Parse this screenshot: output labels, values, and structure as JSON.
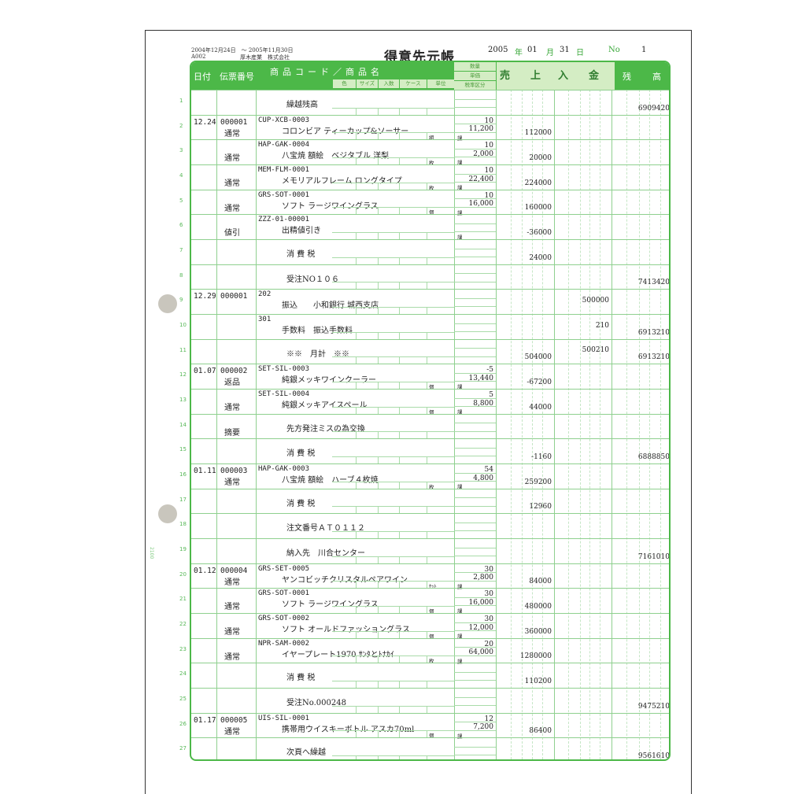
{
  "header": {
    "period": "2004年12月24日　～ 2005年11月30日",
    "customer_code": "A002",
    "customer_name": "厚木産業　株式会社",
    "title": "得意先元帳",
    "year": "2005",
    "year_label": "年",
    "month": "01",
    "month_label": "月",
    "day": "31",
    "day_label": "日",
    "no_label": "No",
    "no": "1"
  },
  "columns": {
    "date": "日付",
    "voucher": "伝票番号",
    "product": "商品コード／商品名",
    "color": "色",
    "size": "サイズ",
    "per_case": "入数",
    "case": "ケース",
    "unit": "単位",
    "quantity": "数量",
    "price": "単価",
    "tax_class": "税率区分",
    "sales": "売　　上",
    "payment": "入　　金",
    "balance": "残　高"
  },
  "side_text": "2100",
  "colors": {
    "accent": "#4cb848",
    "light": "#d4edc4",
    "line": "#8fd08f"
  },
  "rows": [
    {
      "n": "1",
      "date": "",
      "voucher": "",
      "type": "",
      "code": "",
      "name": "繰越残高",
      "unit": "",
      "qty": "",
      "price": "",
      "tax": "",
      "sales": "",
      "payment": "",
      "balance": "6909420"
    },
    {
      "n": "2",
      "date": "12.24",
      "voucher": "000001",
      "type": "通常",
      "code": "CUP-XCB-0003",
      "name": "コロンビア ティーカップ&ソーサー",
      "unit": "組",
      "qty": "10",
      "price": "11,200",
      "tax": "課",
      "sales": "112000",
      "payment": "",
      "balance": ""
    },
    {
      "n": "3",
      "date": "",
      "voucher": "",
      "type": "通常",
      "code": "HAP-GAK-0004",
      "name": "八宝焼 額絵　ベジタブル 洋梨",
      "unit": "枚",
      "qty": "10",
      "price": "2,000",
      "tax": "課",
      "sales": "20000",
      "payment": "",
      "balance": ""
    },
    {
      "n": "4",
      "date": "",
      "voucher": "",
      "type": "通常",
      "code": "MEM-FLM-0001",
      "name": "メモリアルフレーム ロングタイプ",
      "unit": "枚",
      "qty": "10",
      "price": "22,400",
      "tax": "課",
      "sales": "224000",
      "payment": "",
      "balance": ""
    },
    {
      "n": "5",
      "date": "",
      "voucher": "",
      "type": "通常",
      "code": "GRS-SOT-0001",
      "name": "ソフト ラージワイングラス",
      "unit": "個",
      "qty": "10",
      "price": "16,000",
      "tax": "課",
      "sales": "160000",
      "payment": "",
      "balance": ""
    },
    {
      "n": "6",
      "date": "",
      "voucher": "",
      "type": "値引",
      "code": "ZZZ-01-00001",
      "name": "出精値引き",
      "unit": "",
      "qty": "",
      "price": "",
      "tax": "課",
      "sales": "-36000",
      "payment": "",
      "balance": ""
    },
    {
      "n": "7",
      "date": "",
      "voucher": "",
      "type": "",
      "code": "",
      "name": "消 費 税",
      "unit": "",
      "qty": "",
      "price": "",
      "tax": "",
      "sales": "24000",
      "payment": "",
      "balance": ""
    },
    {
      "n": "8",
      "date": "",
      "voucher": "",
      "type": "",
      "code": "",
      "name": "受注NO１０６",
      "unit": "",
      "qty": "",
      "price": "",
      "tax": "",
      "sales": "",
      "payment": "",
      "balance": "7413420"
    },
    {
      "n": "9",
      "date": "12.29",
      "voucher": "000001",
      "type": "",
      "code": "202",
      "name": "振込　　小和銀行 城西支店",
      "unit": "",
      "qty": "",
      "price": "",
      "tax": "",
      "sales": "",
      "payment": "500000",
      "balance": ""
    },
    {
      "n": "10",
      "date": "",
      "voucher": "",
      "type": "",
      "code": "301",
      "name": "手数料　振込手数料",
      "unit": "",
      "qty": "",
      "price": "",
      "tax": "",
      "sales": "",
      "payment": "210",
      "balance": "6913210"
    },
    {
      "n": "11",
      "date": "",
      "voucher": "",
      "type": "",
      "code": "",
      "name": "※※　月計　※※",
      "unit": "",
      "qty": "",
      "price": "",
      "tax": "",
      "sales": "504000",
      "payment": "500210",
      "balance": "6913210"
    },
    {
      "n": "12",
      "date": "01.07",
      "voucher": "000002",
      "type": "返品",
      "code": "SET-SIL-0003",
      "name": "純銀メッキワインクーラー",
      "unit": "個",
      "qty": "-5",
      "price": "13,440",
      "tax": "課",
      "sales": "-67200",
      "payment": "",
      "balance": ""
    },
    {
      "n": "13",
      "date": "",
      "voucher": "",
      "type": "通常",
      "code": "SET-SIL-0004",
      "name": "純銀メッキアイスペール",
      "unit": "個",
      "qty": "5",
      "price": "8,800",
      "tax": "課",
      "sales": "44000",
      "payment": "",
      "balance": ""
    },
    {
      "n": "14",
      "date": "",
      "voucher": "",
      "type": "摘要",
      "code": "",
      "name": "先方発注ミスの為交換",
      "unit": "",
      "qty": "",
      "price": "",
      "tax": "",
      "sales": "",
      "payment": "",
      "balance": ""
    },
    {
      "n": "15",
      "date": "",
      "voucher": "",
      "type": "",
      "code": "",
      "name": "消 費 税",
      "unit": "",
      "qty": "",
      "price": "",
      "tax": "",
      "sales": "-1160",
      "payment": "",
      "balance": "6888850"
    },
    {
      "n": "16",
      "date": "01.11",
      "voucher": "000003",
      "type": "通常",
      "code": "HAP-GAK-0003",
      "name": "八宝焼 額絵　ハーブ４枚焼",
      "unit": "枚",
      "qty": "54",
      "price": "4,800",
      "tax": "課",
      "sales": "259200",
      "payment": "",
      "balance": ""
    },
    {
      "n": "17",
      "date": "",
      "voucher": "",
      "type": "",
      "code": "",
      "name": "消 費 税",
      "unit": "",
      "qty": "",
      "price": "",
      "tax": "",
      "sales": "12960",
      "payment": "",
      "balance": ""
    },
    {
      "n": "18",
      "date": "",
      "voucher": "",
      "type": "",
      "code": "",
      "name": "注文番号ＡＴ０１１２",
      "unit": "",
      "qty": "",
      "price": "",
      "tax": "",
      "sales": "",
      "payment": "",
      "balance": ""
    },
    {
      "n": "19",
      "date": "",
      "voucher": "",
      "type": "",
      "code": "",
      "name": "納入先　川合センター",
      "unit": "",
      "qty": "",
      "price": "",
      "tax": "",
      "sales": "",
      "payment": "",
      "balance": "7161010"
    },
    {
      "n": "20",
      "date": "01.12",
      "voucher": "000004",
      "type": "通常",
      "code": "GRS-SET-0005",
      "name": "ヤンコビッチクリスタルペアワイン",
      "unit": "ｾｯﾄ",
      "qty": "30",
      "price": "2,800",
      "tax": "課",
      "sales": "84000",
      "payment": "",
      "balance": ""
    },
    {
      "n": "21",
      "date": "",
      "voucher": "",
      "type": "通常",
      "code": "GRS-SOT-0001",
      "name": "ソフト ラージワイングラス",
      "unit": "個",
      "qty": "30",
      "price": "16,000",
      "tax": "課",
      "sales": "480000",
      "payment": "",
      "balance": ""
    },
    {
      "n": "22",
      "date": "",
      "voucher": "",
      "type": "通常",
      "code": "GRS-SOT-0002",
      "name": "ソフト オールドファッショングラス",
      "unit": "個",
      "qty": "30",
      "price": "12,000",
      "tax": "課",
      "sales": "360000",
      "payment": "",
      "balance": ""
    },
    {
      "n": "23",
      "date": "",
      "voucher": "",
      "type": "通常",
      "code": "NPR-SAM-0002",
      "name": "イヤープレート1970 ｻﾝﾀとﾄﾅｶｲ",
      "unit": "枚",
      "qty": "20",
      "price": "64,000",
      "tax": "課",
      "sales": "1280000",
      "payment": "",
      "balance": ""
    },
    {
      "n": "24",
      "date": "",
      "voucher": "",
      "type": "",
      "code": "",
      "name": "消 費 税",
      "unit": "",
      "qty": "",
      "price": "",
      "tax": "",
      "sales": "110200",
      "payment": "",
      "balance": ""
    },
    {
      "n": "25",
      "date": "",
      "voucher": "",
      "type": "",
      "code": "",
      "name": "受注No.000248",
      "unit": "",
      "qty": "",
      "price": "",
      "tax": "",
      "sales": "",
      "payment": "",
      "balance": "9475210"
    },
    {
      "n": "26",
      "date": "01.17",
      "voucher": "000005",
      "type": "通常",
      "code": "UIS-SIL-0001",
      "name": "携帯用ウイスキーボトル アスカ70ml",
      "unit": "個",
      "qty": "12",
      "price": "7,200",
      "tax": "課",
      "sales": "86400",
      "payment": "",
      "balance": ""
    },
    {
      "n": "27",
      "date": "",
      "voucher": "",
      "type": "",
      "code": "",
      "name": "次頁へ繰越",
      "unit": "",
      "qty": "",
      "price": "",
      "tax": "",
      "sales": "",
      "payment": "",
      "balance": "9561610"
    }
  ]
}
